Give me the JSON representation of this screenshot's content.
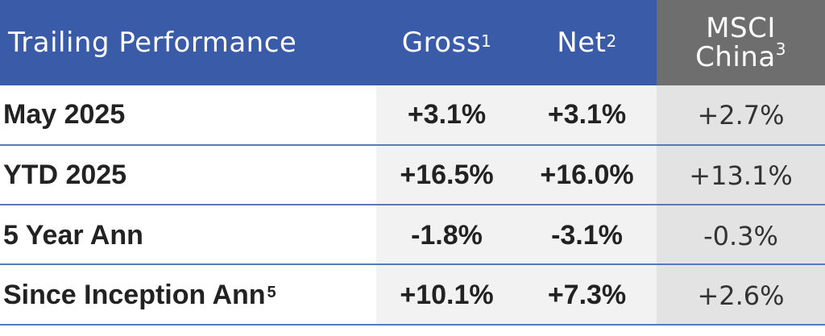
{
  "header": {
    "title": "Trailing Performance",
    "gross": "Gross",
    "gross_note": "1",
    "net": "Net",
    "net_note": "2",
    "msci_line1": "MSCI",
    "msci_line2": "China",
    "msci_note": "3"
  },
  "rows": [
    {
      "label": "May 2025",
      "label_note": "",
      "gross": "+3.1%",
      "net": "+3.1%",
      "msci": "+2.7%"
    },
    {
      "label": "YTD 2025",
      "label_note": "",
      "gross": "+16.5%",
      "net": "+16.0%",
      "msci": "+13.1%"
    },
    {
      "label": "5 Year Ann",
      "label_note": "",
      "gross": "-1.8%",
      "net": "-3.1%",
      "msci": "-0.3%"
    },
    {
      "label": "Since Inception Ann",
      "label_note": "5",
      "gross": "+10.1%",
      "net": "+7.3%",
      "msci": "+2.6%"
    }
  ],
  "colors": {
    "header_blue": "#3a5ba8",
    "header_grey": "#6e6e6e",
    "rule_blue": "#5b79b8"
  }
}
